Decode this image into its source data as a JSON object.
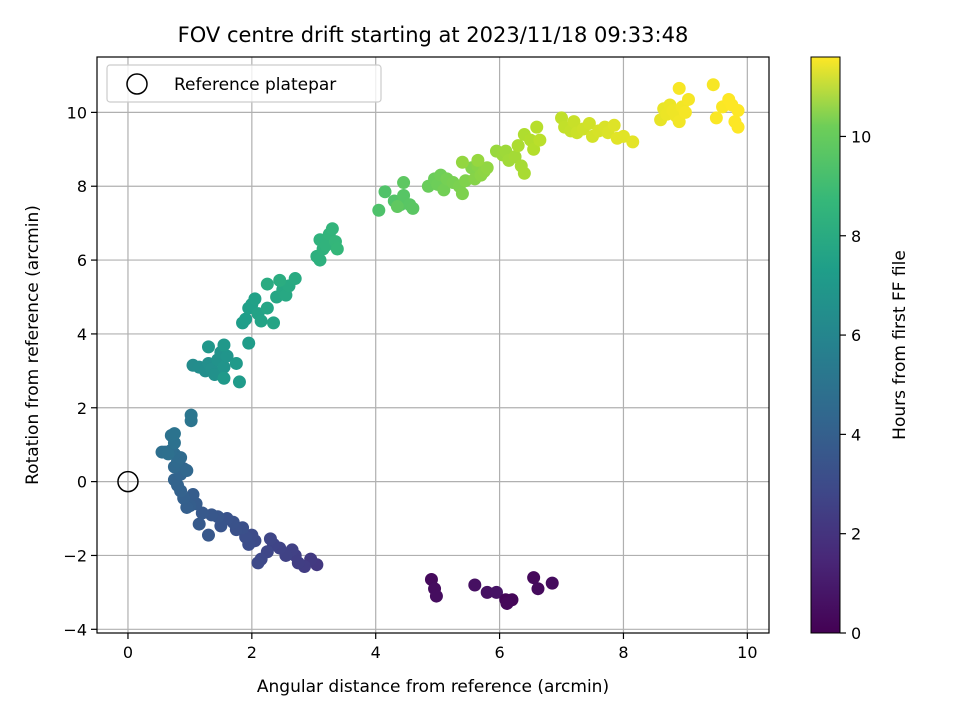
{
  "chart_data": {
    "type": "scatter",
    "title": "FOV centre drift starting at 2023/11/18 09:33:48",
    "xlabel": "Angular distance from reference (arcmin)",
    "ylabel": "Rotation from reference (arcmin)",
    "xlim": [
      -0.5,
      10.35
    ],
    "ylim": [
      -4.1,
      11.5
    ],
    "xticks": [
      0,
      2,
      4,
      6,
      8,
      10
    ],
    "yticks": [
      -4,
      -2,
      0,
      2,
      4,
      6,
      8,
      10
    ],
    "grid": true,
    "legend": {
      "location": "upper left",
      "entries": [
        "Reference platepar"
      ]
    },
    "reference_point": {
      "x": 0,
      "y": 0,
      "label": "Reference platepar"
    },
    "colorbar": {
      "label": "Hours from first FF file",
      "colormap": "viridis",
      "range": [
        0,
        11.6
      ],
      "ticks": [
        0,
        2,
        4,
        6,
        8,
        10
      ]
    },
    "series": [
      {
        "points": [
          {
            "x": 4.9,
            "y": -2.65,
            "c": 0.3
          },
          {
            "x": 4.95,
            "y": -2.9,
            "c": 0.35
          },
          {
            "x": 4.98,
            "y": -3.1,
            "c": 0.4
          },
          {
            "x": 5.6,
            "y": -2.8,
            "c": 0.5
          },
          {
            "x": 5.8,
            "y": -3.0,
            "c": 0.55
          },
          {
            "x": 5.95,
            "y": -3.0,
            "c": 0.6
          },
          {
            "x": 6.1,
            "y": -3.2,
            "c": 0.1
          },
          {
            "x": 6.2,
            "y": -3.2,
            "c": 0.15
          },
          {
            "x": 6.12,
            "y": -3.3,
            "c": 0.2
          },
          {
            "x": 6.55,
            "y": -2.6,
            "c": 0.25
          },
          {
            "x": 6.62,
            "y": -2.9,
            "c": 0.3
          },
          {
            "x": 6.85,
            "y": -2.75,
            "c": 0.35
          },
          {
            "x": 3.05,
            "y": -2.25,
            "c": 1.9
          },
          {
            "x": 2.95,
            "y": -2.1,
            "c": 2.0
          },
          {
            "x": 2.85,
            "y": -2.3,
            "c": 2.1
          },
          {
            "x": 2.75,
            "y": -2.2,
            "c": 2.15
          },
          {
            "x": 2.7,
            "y": -2.0,
            "c": 2.2
          },
          {
            "x": 2.65,
            "y": -1.85,
            "c": 2.25
          },
          {
            "x": 2.55,
            "y": -2.0,
            "c": 2.3
          },
          {
            "x": 2.45,
            "y": -1.8,
            "c": 2.35
          },
          {
            "x": 2.35,
            "y": -1.7,
            "c": 2.4
          },
          {
            "x": 2.3,
            "y": -1.55,
            "c": 2.45
          },
          {
            "x": 2.25,
            "y": -1.9,
            "c": 2.5
          },
          {
            "x": 2.15,
            "y": -2.1,
            "c": 2.55
          },
          {
            "x": 2.1,
            "y": -2.2,
            "c": 2.6
          },
          {
            "x": 2.05,
            "y": -1.6,
            "c": 2.65
          },
          {
            "x": 2.0,
            "y": -1.45,
            "c": 2.7
          },
          {
            "x": 1.95,
            "y": -1.7,
            "c": 2.75
          },
          {
            "x": 1.9,
            "y": -1.5,
            "c": 2.8
          },
          {
            "x": 1.85,
            "y": -1.25,
            "c": 2.85
          },
          {
            "x": 1.75,
            "y": -1.3,
            "c": 2.9
          },
          {
            "x": 1.7,
            "y": -1.1,
            "c": 2.95
          },
          {
            "x": 1.6,
            "y": -1.0,
            "c": 3.0
          },
          {
            "x": 1.5,
            "y": -1.2,
            "c": 3.05
          },
          {
            "x": 1.45,
            "y": -0.95,
            "c": 3.1
          },
          {
            "x": 1.35,
            "y": -0.9,
            "c": 3.15
          },
          {
            "x": 1.3,
            "y": -1.45,
            "c": 3.2
          },
          {
            "x": 1.2,
            "y": -0.85,
            "c": 3.25
          },
          {
            "x": 1.15,
            "y": -1.15,
            "c": 3.3
          },
          {
            "x": 1.1,
            "y": -0.6,
            "c": 3.35
          },
          {
            "x": 1.05,
            "y": -0.35,
            "c": 3.4
          },
          {
            "x": 1.0,
            "y": -0.65,
            "c": 3.45
          },
          {
            "x": 0.95,
            "y": -0.7,
            "c": 3.5
          },
          {
            "x": 0.9,
            "y": -0.45,
            "c": 3.55
          },
          {
            "x": 0.85,
            "y": -0.25,
            "c": 3.6
          },
          {
            "x": 0.8,
            "y": -0.1,
            "c": 3.65
          },
          {
            "x": 0.75,
            "y": 0.05,
            "c": 3.7
          },
          {
            "x": 0.85,
            "y": 0.2,
            "c": 3.75
          },
          {
            "x": 0.9,
            "y": 0.35,
            "c": 3.8
          },
          {
            "x": 0.95,
            "y": 0.3,
            "c": 3.85
          },
          {
            "x": 0.75,
            "y": 0.4,
            "c": 3.9
          },
          {
            "x": 0.8,
            "y": 0.55,
            "c": 3.95
          },
          {
            "x": 0.85,
            "y": 0.65,
            "c": 4.0
          },
          {
            "x": 0.75,
            "y": 0.75,
            "c": 4.05
          },
          {
            "x": 0.7,
            "y": 0.85,
            "c": 4.1
          },
          {
            "x": 0.6,
            "y": 0.8,
            "c": 4.15
          },
          {
            "x": 0.55,
            "y": 0.8,
            "c": 4.2
          },
          {
            "x": 0.65,
            "y": 0.75,
            "c": 4.25
          },
          {
            "x": 0.75,
            "y": 1.05,
            "c": 4.3
          },
          {
            "x": 0.7,
            "y": 1.25,
            "c": 4.35
          },
          {
            "x": 0.75,
            "y": 1.3,
            "c": 4.4
          },
          {
            "x": 1.02,
            "y": 1.65,
            "c": 4.5
          },
          {
            "x": 1.02,
            "y": 1.8,
            "c": 4.55
          },
          {
            "x": 1.05,
            "y": 3.15,
            "c": 5.6
          },
          {
            "x": 1.15,
            "y": 3.1,
            "c": 5.65
          },
          {
            "x": 1.25,
            "y": 3.0,
            "c": 5.7
          },
          {
            "x": 1.3,
            "y": 3.2,
            "c": 5.75
          },
          {
            "x": 1.35,
            "y": 3.05,
            "c": 5.8
          },
          {
            "x": 1.4,
            "y": 2.9,
            "c": 5.85
          },
          {
            "x": 1.45,
            "y": 3.3,
            "c": 5.9
          },
          {
            "x": 1.5,
            "y": 3.5,
            "c": 5.95
          },
          {
            "x": 1.55,
            "y": 3.1,
            "c": 6.0
          },
          {
            "x": 1.6,
            "y": 3.4,
            "c": 6.05
          },
          {
            "x": 1.3,
            "y": 3.65,
            "c": 6.1
          },
          {
            "x": 1.55,
            "y": 3.7,
            "c": 6.15
          },
          {
            "x": 1.55,
            "y": 2.8,
            "c": 6.2
          },
          {
            "x": 1.75,
            "y": 3.2,
            "c": 6.25
          },
          {
            "x": 1.8,
            "y": 2.7,
            "c": 6.3
          },
          {
            "x": 1.95,
            "y": 3.75,
            "c": 6.35
          },
          {
            "x": 1.85,
            "y": 4.3,
            "c": 6.4
          },
          {
            "x": 1.9,
            "y": 4.4,
            "c": 6.45
          },
          {
            "x": 1.95,
            "y": 4.7,
            "c": 6.5
          },
          {
            "x": 2.0,
            "y": 4.8,
            "c": 6.55
          },
          {
            "x": 2.05,
            "y": 4.95,
            "c": 6.6
          },
          {
            "x": 2.1,
            "y": 4.55,
            "c": 6.65
          },
          {
            "x": 2.15,
            "y": 4.35,
            "c": 6.7
          },
          {
            "x": 2.35,
            "y": 4.3,
            "c": 6.75
          },
          {
            "x": 2.25,
            "y": 4.7,
            "c": 6.8
          },
          {
            "x": 2.4,
            "y": 5.0,
            "c": 6.85
          },
          {
            "x": 2.5,
            "y": 5.2,
            "c": 6.9
          },
          {
            "x": 2.55,
            "y": 5.05,
            "c": 6.95
          },
          {
            "x": 2.6,
            "y": 5.3,
            "c": 7.0
          },
          {
            "x": 2.7,
            "y": 5.5,
            "c": 7.05
          },
          {
            "x": 2.25,
            "y": 5.35,
            "c": 7.1
          },
          {
            "x": 2.45,
            "y": 5.45,
            "c": 7.15
          },
          {
            "x": 3.05,
            "y": 6.1,
            "c": 7.3
          },
          {
            "x": 3.1,
            "y": 6.0,
            "c": 7.35
          },
          {
            "x": 3.15,
            "y": 6.3,
            "c": 7.4
          },
          {
            "x": 3.1,
            "y": 6.55,
            "c": 7.45
          },
          {
            "x": 3.2,
            "y": 6.4,
            "c": 7.5
          },
          {
            "x": 3.25,
            "y": 6.7,
            "c": 7.55
          },
          {
            "x": 3.3,
            "y": 6.85,
            "c": 7.6
          },
          {
            "x": 3.35,
            "y": 6.5,
            "c": 7.65
          },
          {
            "x": 3.38,
            "y": 6.3,
            "c": 7.7
          },
          {
            "x": 4.05,
            "y": 7.35,
            "c": 8.3
          },
          {
            "x": 4.15,
            "y": 7.85,
            "c": 8.35
          },
          {
            "x": 4.3,
            "y": 7.6,
            "c": 8.4
          },
          {
            "x": 4.4,
            "y": 7.5,
            "c": 8.45
          },
          {
            "x": 4.45,
            "y": 7.75,
            "c": 8.5
          },
          {
            "x": 4.55,
            "y": 7.5,
            "c": 8.55
          },
          {
            "x": 4.6,
            "y": 7.4,
            "c": 8.6
          },
          {
            "x": 4.45,
            "y": 8.1,
            "c": 8.65
          },
          {
            "x": 4.35,
            "y": 7.45,
            "c": 8.7
          },
          {
            "x": 4.85,
            "y": 8.0,
            "c": 8.9
          },
          {
            "x": 4.95,
            "y": 8.2,
            "c": 8.95
          },
          {
            "x": 5.0,
            "y": 8.05,
            "c": 9.0
          },
          {
            "x": 5.05,
            "y": 8.3,
            "c": 9.05
          },
          {
            "x": 5.1,
            "y": 7.9,
            "c": 9.1
          },
          {
            "x": 5.15,
            "y": 8.2,
            "c": 9.15
          },
          {
            "x": 5.25,
            "y": 8.1,
            "c": 9.2
          },
          {
            "x": 5.35,
            "y": 8.0,
            "c": 9.25
          },
          {
            "x": 5.4,
            "y": 7.8,
            "c": 9.3
          },
          {
            "x": 5.45,
            "y": 8.15,
            "c": 9.35
          },
          {
            "x": 5.55,
            "y": 8.5,
            "c": 9.4
          },
          {
            "x": 5.6,
            "y": 8.2,
            "c": 9.45
          },
          {
            "x": 5.65,
            "y": 8.55,
            "c": 9.5
          },
          {
            "x": 5.7,
            "y": 8.3,
            "c": 9.55
          },
          {
            "x": 5.75,
            "y": 8.4,
            "c": 9.6
          },
          {
            "x": 5.8,
            "y": 8.5,
            "c": 9.65
          },
          {
            "x": 5.4,
            "y": 8.65,
            "c": 9.7
          },
          {
            "x": 5.65,
            "y": 8.7,
            "c": 9.75
          },
          {
            "x": 5.95,
            "y": 8.95,
            "c": 9.8
          },
          {
            "x": 6.05,
            "y": 8.85,
            "c": 9.85
          },
          {
            "x": 6.1,
            "y": 8.95,
            "c": 9.9
          },
          {
            "x": 6.15,
            "y": 8.7,
            "c": 9.95
          },
          {
            "x": 6.25,
            "y": 8.8,
            "c": 10.0
          },
          {
            "x": 6.35,
            "y": 8.55,
            "c": 10.05
          },
          {
            "x": 6.4,
            "y": 8.35,
            "c": 10.1
          },
          {
            "x": 6.3,
            "y": 9.1,
            "c": 10.15
          },
          {
            "x": 6.4,
            "y": 9.4,
            "c": 10.2
          },
          {
            "x": 6.5,
            "y": 9.25,
            "c": 10.25
          },
          {
            "x": 6.55,
            "y": 9.0,
            "c": 10.3
          },
          {
            "x": 6.6,
            "y": 9.6,
            "c": 10.35
          },
          {
            "x": 6.65,
            "y": 9.25,
            "c": 10.4
          },
          {
            "x": 7.0,
            "y": 9.85,
            "c": 10.5
          },
          {
            "x": 7.05,
            "y": 9.6,
            "c": 10.55
          },
          {
            "x": 7.15,
            "y": 9.5,
            "c": 10.6
          },
          {
            "x": 7.2,
            "y": 9.75,
            "c": 10.65
          },
          {
            "x": 7.25,
            "y": 9.45,
            "c": 10.7
          },
          {
            "x": 7.35,
            "y": 9.55,
            "c": 10.75
          },
          {
            "x": 7.45,
            "y": 9.7,
            "c": 10.8
          },
          {
            "x": 7.5,
            "y": 9.35,
            "c": 10.85
          },
          {
            "x": 7.6,
            "y": 9.5,
            "c": 10.9
          },
          {
            "x": 7.7,
            "y": 9.6,
            "c": 10.95
          },
          {
            "x": 7.75,
            "y": 9.45,
            "c": 11.0
          },
          {
            "x": 7.85,
            "y": 9.65,
            "c": 11.05
          },
          {
            "x": 7.9,
            "y": 9.3,
            "c": 11.1
          },
          {
            "x": 8.0,
            "y": 9.35,
            "c": 11.1
          },
          {
            "x": 8.15,
            "y": 9.2,
            "c": 11.15
          },
          {
            "x": 8.6,
            "y": 9.8,
            "c": 11.2
          },
          {
            "x": 8.65,
            "y": 10.1,
            "c": 11.25
          },
          {
            "x": 8.7,
            "y": 9.95,
            "c": 11.3
          },
          {
            "x": 8.75,
            "y": 10.2,
            "c": 11.3
          },
          {
            "x": 8.8,
            "y": 10.05,
            "c": 11.35
          },
          {
            "x": 8.85,
            "y": 9.9,
            "c": 11.35
          },
          {
            "x": 8.9,
            "y": 9.75,
            "c": 11.4
          },
          {
            "x": 8.95,
            "y": 10.15,
            "c": 11.4
          },
          {
            "x": 9.0,
            "y": 10.0,
            "c": 11.45
          },
          {
            "x": 9.05,
            "y": 10.35,
            "c": 11.45
          },
          {
            "x": 8.9,
            "y": 10.65,
            "c": 11.5
          },
          {
            "x": 9.45,
            "y": 10.75,
            "c": 11.5
          },
          {
            "x": 9.5,
            "y": 9.85,
            "c": 11.55
          },
          {
            "x": 9.6,
            "y": 10.15,
            "c": 11.55
          },
          {
            "x": 9.7,
            "y": 10.35,
            "c": 11.6
          },
          {
            "x": 9.75,
            "y": 10.2,
            "c": 11.6
          },
          {
            "x": 9.8,
            "y": 9.75,
            "c": 11.6
          },
          {
            "x": 9.85,
            "y": 10.05,
            "c": 11.6
          },
          {
            "x": 9.85,
            "y": 9.6,
            "c": 11.6
          }
        ]
      }
    ]
  }
}
